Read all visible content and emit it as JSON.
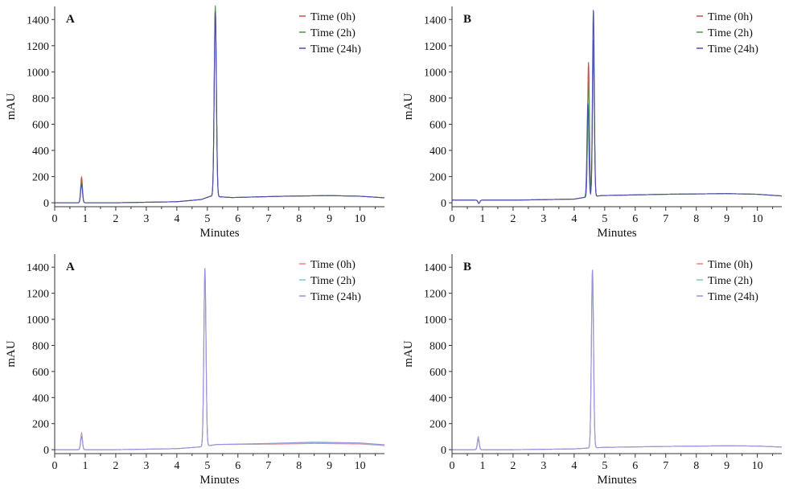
{
  "chart_data": [
    {
      "type": "line",
      "panel_label": "A",
      "xlabel": "Minutes",
      "ylabel": "mAU",
      "xlim": [
        0,
        10.8
      ],
      "ylim": [
        -30,
        1500
      ],
      "xticks": [
        0,
        1,
        2,
        3,
        4,
        5,
        6,
        7,
        8,
        9,
        10
      ],
      "yticks": [
        0,
        200,
        400,
        600,
        800,
        1000,
        1200,
        1400
      ],
      "legend": "top-right",
      "series": [
        {
          "name": "Time (0h)",
          "color": "#d04a4a",
          "baseline": [
            [
              0,
              0
            ],
            [
              2,
              0
            ],
            [
              4,
              8
            ],
            [
              4.8,
              25
            ],
            [
              5.1,
              50
            ],
            [
              5.8,
              40
            ],
            [
              7.5,
              50
            ],
            [
              9,
              55
            ],
            [
              10,
              50
            ],
            [
              10.8,
              38
            ]
          ],
          "peaks": [
            {
              "x": 0.88,
              "h": 195,
              "w": 0.03
            },
            {
              "x": 5.26,
              "h": 1430,
              "w": 0.035
            }
          ]
        },
        {
          "name": "Time (2h)",
          "color": "#4a9a4a",
          "baseline": [
            [
              0,
              0
            ],
            [
              2,
              0
            ],
            [
              4,
              8
            ],
            [
              4.8,
              25
            ],
            [
              5.1,
              50
            ],
            [
              5.8,
              40
            ],
            [
              7.5,
              50
            ],
            [
              9,
              55
            ],
            [
              10,
              50
            ],
            [
              10.8,
              38
            ]
          ],
          "peaks": [
            {
              "x": 0.88,
              "h": 165,
              "w": 0.03
            },
            {
              "x": 5.26,
              "h": 1460,
              "w": 0.035
            }
          ]
        },
        {
          "name": "Time (24h)",
          "color": "#4a4ab4",
          "baseline": [
            [
              0,
              0
            ],
            [
              2,
              0
            ],
            [
              4,
              8
            ],
            [
              4.8,
              25
            ],
            [
              5.1,
              50
            ],
            [
              5.8,
              40
            ],
            [
              7.5,
              50
            ],
            [
              9,
              55
            ],
            [
              10,
              50
            ],
            [
              10.8,
              38
            ]
          ],
          "peaks": [
            {
              "x": 0.88,
              "h": 140,
              "w": 0.03
            },
            {
              "x": 5.26,
              "h": 1410,
              "w": 0.035
            }
          ]
        }
      ]
    },
    {
      "type": "line",
      "panel_label": "B",
      "xlabel": "Minutes",
      "ylabel": "mAU",
      "xlim": [
        0,
        10.8
      ],
      "ylim": [
        -30,
        1500
      ],
      "xticks": [
        0,
        1,
        2,
        3,
        4,
        5,
        6,
        7,
        8,
        9,
        10
      ],
      "yticks": [
        0,
        200,
        400,
        600,
        800,
        1000,
        1200,
        1400
      ],
      "legend": "top-right",
      "series": [
        {
          "name": "Time (0h)",
          "color": "#d04a4a",
          "baseline": [
            [
              0,
              20
            ],
            [
              2,
              20
            ],
            [
              4,
              28
            ],
            [
              4.3,
              40
            ],
            [
              4.9,
              55
            ],
            [
              7,
              65
            ],
            [
              9,
              70
            ],
            [
              10,
              65
            ],
            [
              10.8,
              52
            ]
          ],
          "peaks": [
            {
              "x": 0.88,
              "h": -25,
              "w": 0.03
            },
            {
              "x": 4.47,
              "h": 1030,
              "w": 0.03
            },
            {
              "x": 4.63,
              "h": 1100,
              "w": 0.03
            }
          ]
        },
        {
          "name": "Time (2h)",
          "color": "#4a9a4a",
          "baseline": [
            [
              0,
              20
            ],
            [
              2,
              20
            ],
            [
              4,
              28
            ],
            [
              4.3,
              40
            ],
            [
              4.9,
              55
            ],
            [
              7,
              65
            ],
            [
              9,
              70
            ],
            [
              10,
              65
            ],
            [
              10.8,
              52
            ]
          ],
          "peaks": [
            {
              "x": 0.88,
              "h": -25,
              "w": 0.03
            },
            {
              "x": 4.47,
              "h": 880,
              "w": 0.03
            },
            {
              "x": 4.63,
              "h": 1200,
              "w": 0.03
            }
          ]
        },
        {
          "name": "Time (24h)",
          "color": "#4a4ab4",
          "baseline": [
            [
              0,
              20
            ],
            [
              2,
              20
            ],
            [
              4,
              28
            ],
            [
              4.3,
              40
            ],
            [
              4.9,
              55
            ],
            [
              7,
              65
            ],
            [
              9,
              70
            ],
            [
              10,
              65
            ],
            [
              10.8,
              52
            ]
          ],
          "peaks": [
            {
              "x": 0.88,
              "h": -25,
              "w": 0.03
            },
            {
              "x": 4.45,
              "h": 720,
              "w": 0.03
            },
            {
              "x": 4.63,
              "h": 1430,
              "w": 0.03
            }
          ]
        }
      ]
    },
    {
      "type": "line",
      "panel_label": "A",
      "xlabel": "Minutes",
      "ylabel": "mAU",
      "xlim": [
        0,
        10.8
      ],
      "ylim": [
        -30,
        1500
      ],
      "xticks": [
        0,
        1,
        2,
        3,
        4,
        5,
        6,
        7,
        8,
        9,
        10
      ],
      "yticks": [
        0,
        200,
        400,
        600,
        800,
        1000,
        1200,
        1400
      ],
      "legend": "top-right",
      "series": [
        {
          "name": "Time (0h)",
          "color": "#f08080",
          "baseline": [
            [
              0,
              0
            ],
            [
              2,
              0
            ],
            [
              4,
              8
            ],
            [
              4.8,
              22
            ],
            [
              5.3,
              40
            ],
            [
              7,
              42
            ],
            [
              8.5,
              48
            ],
            [
              10,
              44
            ],
            [
              10.8,
              32
            ]
          ],
          "peaks": [
            {
              "x": 0.88,
              "h": 130,
              "w": 0.03
            },
            {
              "x": 4.92,
              "h": 1340,
              "w": 0.035
            }
          ]
        },
        {
          "name": "Time (2h)",
          "color": "#80c8c8",
          "baseline": [
            [
              0,
              0
            ],
            [
              2,
              0
            ],
            [
              4,
              8
            ],
            [
              4.8,
              22
            ],
            [
              5.3,
              40
            ],
            [
              7,
              45
            ],
            [
              8.5,
              52
            ],
            [
              10,
              48
            ],
            [
              10.8,
              35
            ]
          ],
          "peaks": [
            {
              "x": 0.88,
              "h": 115,
              "w": 0.03
            },
            {
              "x": 4.92,
              "h": 1300,
              "w": 0.035
            }
          ]
        },
        {
          "name": "Time (24h)",
          "color": "#9a90e0",
          "baseline": [
            [
              0,
              0
            ],
            [
              2,
              0
            ],
            [
              4,
              8
            ],
            [
              4.8,
              22
            ],
            [
              5.3,
              40
            ],
            [
              7,
              48
            ],
            [
              8.5,
              58
            ],
            [
              10,
              52
            ],
            [
              10.8,
              38
            ]
          ],
          "peaks": [
            {
              "x": 0.88,
              "h": 100,
              "w": 0.03
            },
            {
              "x": 4.92,
              "h": 1370,
              "w": 0.035
            }
          ]
        }
      ]
    },
    {
      "type": "line",
      "panel_label": "B",
      "xlabel": "Minutes",
      "ylabel": "mAU",
      "xlim": [
        0,
        10.8
      ],
      "ylim": [
        -30,
        1500
      ],
      "xticks": [
        0,
        1,
        2,
        3,
        4,
        5,
        6,
        7,
        8,
        9,
        10
      ],
      "yticks": [
        0,
        200,
        400,
        600,
        800,
        1000,
        1200,
        1400
      ],
      "legend": "top-right",
      "series": [
        {
          "name": "Time (0h)",
          "color": "#f08080",
          "baseline": [
            [
              0,
              0
            ],
            [
              2,
              0
            ],
            [
              4,
              6
            ],
            [
              4.4,
              12
            ],
            [
              5,
              18
            ],
            [
              7,
              25
            ],
            [
              9,
              30
            ],
            [
              10,
              28
            ],
            [
              10.8,
              20
            ]
          ],
          "peaks": [
            {
              "x": 0.86,
              "h": 100,
              "w": 0.03
            },
            {
              "x": 4.6,
              "h": 1350,
              "w": 0.035
            }
          ]
        },
        {
          "name": "Time (2h)",
          "color": "#80c8c8",
          "baseline": [
            [
              0,
              0
            ],
            [
              2,
              0
            ],
            [
              4,
              6
            ],
            [
              4.4,
              12
            ],
            [
              5,
              18
            ],
            [
              7,
              25
            ],
            [
              9,
              30
            ],
            [
              10,
              28
            ],
            [
              10.8,
              20
            ]
          ],
          "peaks": [
            {
              "x": 0.86,
              "h": 90,
              "w": 0.03
            },
            {
              "x": 4.6,
              "h": 1310,
              "w": 0.035
            }
          ]
        },
        {
          "name": "Time (24h)",
          "color": "#9a90e0",
          "baseline": [
            [
              0,
              0
            ],
            [
              2,
              0
            ],
            [
              4,
              6
            ],
            [
              4.4,
              12
            ],
            [
              5,
              18
            ],
            [
              7,
              25
            ],
            [
              9,
              30
            ],
            [
              10,
              28
            ],
            [
              10.8,
              20
            ]
          ],
          "peaks": [
            {
              "x": 0.86,
              "h": 80,
              "w": 0.03
            },
            {
              "x": 4.6,
              "h": 1370,
              "w": 0.035
            }
          ]
        }
      ]
    }
  ]
}
